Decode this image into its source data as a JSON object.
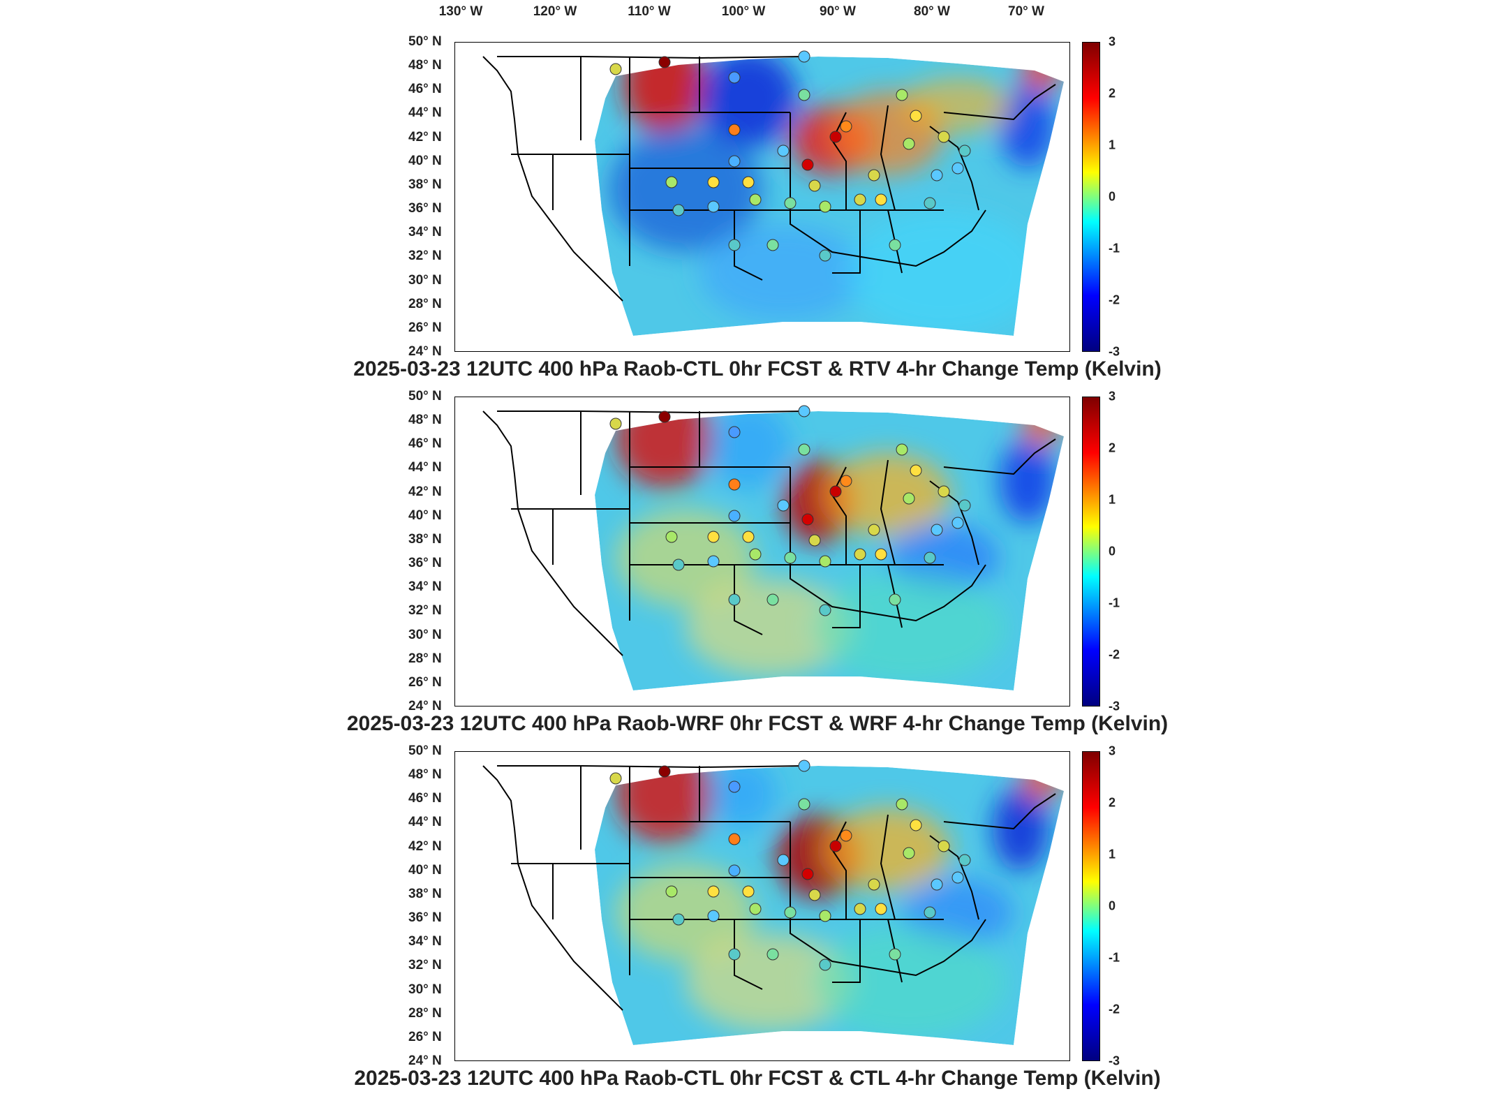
{
  "lon_labels": [
    "130° W",
    "120° W",
    "110° W",
    "100° W",
    "90° W",
    "80° W",
    "70° W"
  ],
  "lat_labels": [
    "50° N",
    "48° N",
    "46° N",
    "44° N",
    "42° N",
    "40° N",
    "38° N",
    "36° N",
    "34° N",
    "32° N",
    "30° N",
    "28° N",
    "26° N",
    "24° N"
  ],
  "colorbar": {
    "min": -3,
    "max": 3,
    "ticks": [
      "3",
      "2",
      "1",
      "0",
      "-1",
      "-2",
      "-3"
    ],
    "colors": [
      "#7f0000",
      "#ff0000",
      "#ff7f00",
      "#ffff00",
      "#7fff7f",
      "#00ffff",
      "#007fff",
      "#0000ff",
      "#00007f"
    ]
  },
  "panels": [
    {
      "title": "2025-03-23 12UTC 400 hPa Raob-CTL 0hr FCST & RTV 4-hr Change Temp (Kelvin)"
    },
    {
      "title": "2025-03-23 12UTC 400 hPa Raob-WRF 0hr FCST & WRF 4-hr Change Temp (Kelvin)"
    },
    {
      "title": "2025-03-23 12UTC 400 hPa Raob-CTL 0hr FCST & CTL 4-hr Change Temp (Kelvin)"
    }
  ]
}
